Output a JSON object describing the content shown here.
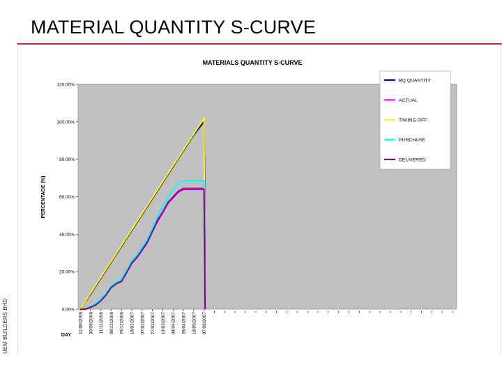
{
  "slide": {
    "title": "MATERIAL QUANTITY S-CURVE",
    "company": "UEM BUILDERS BHD"
  },
  "colors": {
    "plot_bg": "#c0c0c0",
    "boq": "#000080",
    "actual": "#ff00ff",
    "taking_off": "#ffff00",
    "purchase": "#00ffff",
    "delivered": "#800080",
    "accent_rule": "#d0202a"
  },
  "chart_data": {
    "type": "line",
    "title": "MATERIALS QUANTITY S-CURVE",
    "xlabel": "DAY",
    "ylabel": "PERCENTAGE (%)",
    "ylim": [
      0,
      1.2
    ],
    "yticks": [
      "0.00%",
      "20.00%",
      "40.00%",
      "60.00%",
      "80.00%",
      "100.00%",
      "120.00%"
    ],
    "x_categories": [
      "11/08/2006",
      "30/09/2006",
      "11/11/2006",
      "09/12/2006",
      "29/12/2006",
      "18/01/2007",
      "07/02/2007",
      "27/02/2007",
      "19/03/2007",
      "08/04/2007",
      "28/04/2007",
      "18/05/2007",
      "07/06/2007"
    ],
    "x_extra_ticks": 24,
    "grid": false,
    "legend_position": "top-right",
    "series": [
      {
        "name": "BQ QUANTITY",
        "color_key": "boq",
        "points": [
          [
            0,
            0
          ],
          [
            1,
            0.08
          ],
          [
            2,
            0.165
          ],
          [
            3,
            0.25
          ],
          [
            4,
            0.335
          ],
          [
            5,
            0.42
          ],
          [
            6,
            0.505
          ],
          [
            7,
            0.59
          ],
          [
            8,
            0.675
          ],
          [
            9,
            0.76
          ],
          [
            10,
            0.845
          ],
          [
            11,
            0.93
          ],
          [
            12,
            1.0
          ],
          [
            12.05,
            0.78
          ],
          [
            12.1,
            0.0
          ]
        ]
      },
      {
        "name": "ACTUAL",
        "color_key": "actual",
        "points": [
          [
            0,
            0
          ],
          [
            0.5,
            0.0
          ],
          [
            1,
            0.012
          ],
          [
            1.5,
            0.025
          ],
          [
            2,
            0.05
          ],
          [
            2.5,
            0.08
          ],
          [
            3,
            0.12
          ],
          [
            3.5,
            0.14
          ],
          [
            4,
            0.15
          ],
          [
            4.5,
            0.2
          ],
          [
            5,
            0.25
          ],
          [
            5.5,
            0.28
          ],
          [
            6,
            0.32
          ],
          [
            6.5,
            0.36
          ],
          [
            7,
            0.42
          ],
          [
            7.5,
            0.48
          ],
          [
            8,
            0.52
          ],
          [
            8.5,
            0.57
          ],
          [
            9,
            0.6
          ],
          [
            9.5,
            0.63
          ],
          [
            10,
            0.645
          ],
          [
            12,
            0.645
          ],
          [
            12.05,
            0.44
          ],
          [
            12.1,
            0.0
          ]
        ]
      },
      {
        "name": "TAKING OFF",
        "color_key": "taking_off",
        "points": [
          [
            0,
            0
          ],
          [
            1,
            0.085
          ],
          [
            2,
            0.17
          ],
          [
            3,
            0.255
          ],
          [
            4,
            0.34
          ],
          [
            5,
            0.425
          ],
          [
            6,
            0.51
          ],
          [
            7,
            0.595
          ],
          [
            8,
            0.68
          ],
          [
            9,
            0.765
          ],
          [
            10,
            0.85
          ],
          [
            11,
            0.935
          ],
          [
            12,
            1.02
          ],
          [
            12.05,
            0.5
          ],
          [
            12.1,
            0.0
          ]
        ]
      },
      {
        "name": "PURCHASE",
        "color_key": "purchase",
        "points": [
          [
            0,
            0
          ],
          [
            0.5,
            0.0
          ],
          [
            1,
            0.015
          ],
          [
            1.5,
            0.03
          ],
          [
            2,
            0.055
          ],
          [
            2.5,
            0.085
          ],
          [
            3,
            0.125
          ],
          [
            3.5,
            0.145
          ],
          [
            4,
            0.16
          ],
          [
            4.5,
            0.21
          ],
          [
            5,
            0.26
          ],
          [
            5.5,
            0.29
          ],
          [
            6,
            0.33
          ],
          [
            6.5,
            0.375
          ],
          [
            7,
            0.43
          ],
          [
            7.5,
            0.5
          ],
          [
            8,
            0.55
          ],
          [
            8.5,
            0.6
          ],
          [
            9,
            0.64
          ],
          [
            9.5,
            0.67
          ],
          [
            10,
            0.685
          ],
          [
            12,
            0.685
          ],
          [
            12.05,
            0.43
          ],
          [
            12.1,
            0.0
          ]
        ]
      },
      {
        "name": "DELIVERED",
        "color_key": "delivered",
        "points": [
          [
            0,
            0
          ],
          [
            0.5,
            0.0
          ],
          [
            1,
            0.01
          ],
          [
            1.5,
            0.022
          ],
          [
            2,
            0.045
          ],
          [
            2.5,
            0.075
          ],
          [
            3,
            0.115
          ],
          [
            3.5,
            0.135
          ],
          [
            4,
            0.148
          ],
          [
            4.5,
            0.195
          ],
          [
            5,
            0.245
          ],
          [
            5.5,
            0.275
          ],
          [
            6,
            0.315
          ],
          [
            6.5,
            0.355
          ],
          [
            7,
            0.415
          ],
          [
            7.5,
            0.47
          ],
          [
            8,
            0.515
          ],
          [
            8.5,
            0.565
          ],
          [
            9,
            0.595
          ],
          [
            9.5,
            0.625
          ],
          [
            10,
            0.64
          ],
          [
            12,
            0.64
          ],
          [
            12.05,
            0.4
          ],
          [
            12.1,
            0.0
          ]
        ]
      }
    ]
  }
}
